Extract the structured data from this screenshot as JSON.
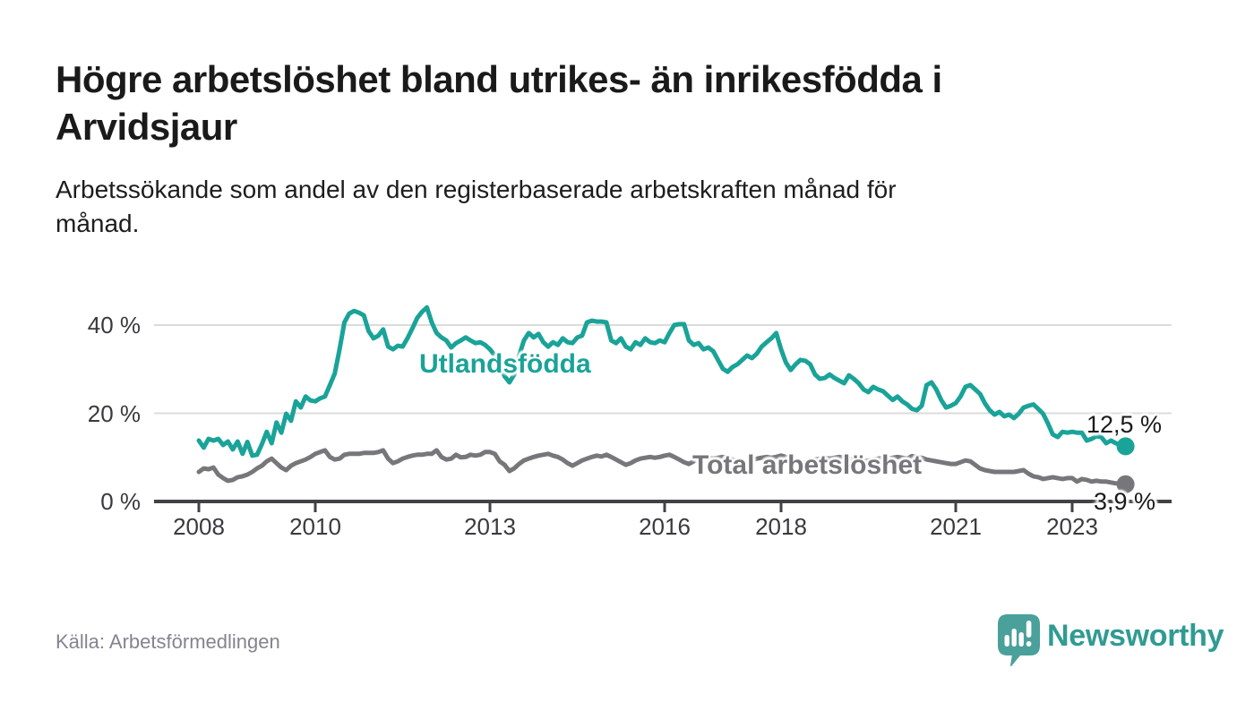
{
  "header": {
    "title_line1": "Högre arbetslöshet bland utrikes- än inrikesfödda i",
    "title_line2": "Arvidsjaur",
    "subtitle_line1": "Arbetssökande som andel av den registerbaserade arbetskraften månad för",
    "subtitle_line2": "månad."
  },
  "footer": {
    "source": "Källa: Arbetsförmedlingen",
    "brand": "Newsworthy"
  },
  "colors": {
    "foreign_born": "#1aa398",
    "total": "#77777b",
    "grid": "#dcdcdc",
    "axis": "#424246",
    "tick_text": "#3a3a3e",
    "title_text": "#1a1a1a",
    "source_text": "#84848e",
    "brand_teal": "#309b93",
    "logo_mark": "#4aa09a"
  },
  "chart_data": {
    "type": "line",
    "title": "Högre arbetslöshet bland utrikes- än inrikesfödda i Arvidsjaur",
    "subtitle": "Arbetssökande som andel av den registerbaserade arbetskraften månad för månad.",
    "unit": "%",
    "x_start_year": 2008,
    "x_step_months": 1,
    "x_end": "2023-12",
    "x_tick_years": [
      2008,
      2010,
      2013,
      2016,
      2018,
      2021,
      2023
    ],
    "x_tick_labels": [
      "2008",
      "2010",
      "2013",
      "2016",
      "2018",
      "2021",
      "2023"
    ],
    "y_tick_values": [
      0,
      20,
      40
    ],
    "y_tick_labels": [
      "0 %",
      "20 %",
      "40 %"
    ],
    "ylim": [
      0,
      46
    ],
    "grid": "horizontal",
    "legend_position": "inline-labels",
    "series": [
      {
        "name": "Utlandsfödda",
        "color": "#1aa398",
        "end_label": "12,5 %",
        "end_value": 12.5,
        "values": [
          13.8,
          12.2,
          14.2,
          13.8,
          14.2,
          12.8,
          13.6,
          11.8,
          13.6,
          10.8,
          13.5,
          10.4,
          10.6,
          13.0,
          15.8,
          13.2,
          17.9,
          15.6,
          19.9,
          18.3,
          22.7,
          21.3,
          23.8,
          22.9,
          22.7,
          23.4,
          23.8,
          26.4,
          29.0,
          34.5,
          40.6,
          42.6,
          43.2,
          42.8,
          42.2,
          38.6,
          37.0,
          37.6,
          39.0,
          35.1,
          34.5,
          35.3,
          35.1,
          37.0,
          39.2,
          41.6,
          43.0,
          44.0,
          40.6,
          38.2,
          37.2,
          36.5,
          34.9,
          35.9,
          36.5,
          37.2,
          36.5,
          35.9,
          36.1,
          35.5,
          34.5,
          33.1,
          30.9,
          28.4,
          27.0,
          28.8,
          33.0,
          36.5,
          38.2,
          37.2,
          38.0,
          36.1,
          35.1,
          36.1,
          35.5,
          37.0,
          36.1,
          35.9,
          37.2,
          37.6,
          40.6,
          41.0,
          40.8,
          40.8,
          40.6,
          36.5,
          35.9,
          37.0,
          35.1,
          34.5,
          36.1,
          35.5,
          37.0,
          36.1,
          35.9,
          36.5,
          36.1,
          38.2,
          40.0,
          40.2,
          40.2,
          36.5,
          35.5,
          35.9,
          34.5,
          34.9,
          34.1,
          32.1,
          30.1,
          29.4,
          30.5,
          31.1,
          32.1,
          33.1,
          32.5,
          33.5,
          35.1,
          36.1,
          37.0,
          38.2,
          34.5,
          31.5,
          29.8,
          31.1,
          32.1,
          31.9,
          31.1,
          28.8,
          27.8,
          28.0,
          28.8,
          28.0,
          27.4,
          26.8,
          28.6,
          27.8,
          26.8,
          25.4,
          24.8,
          26.0,
          25.4,
          25.0,
          24.0,
          23.0,
          23.8,
          22.7,
          22.0,
          21.0,
          20.7,
          21.7,
          26.4,
          27.0,
          25.4,
          23.0,
          21.3,
          21.7,
          22.3,
          23.8,
          26.0,
          26.4,
          25.4,
          24.4,
          22.3,
          20.7,
          19.7,
          20.3,
          19.3,
          19.7,
          18.9,
          19.9,
          21.3,
          21.7,
          22.0,
          21.0,
          19.9,
          17.7,
          15.2,
          14.6,
          15.8,
          15.6,
          15.8,
          15.6,
          15.6,
          13.8,
          14.2,
          14.8,
          14.6,
          13.2,
          13.8,
          13.2,
          12.8,
          12.5
        ]
      },
      {
        "name": "Total arbetslöshet",
        "color": "#77777b",
        "end_label": "3,9 %",
        "end_value": 3.9,
        "values": [
          6.7,
          7.5,
          7.3,
          7.7,
          6.1,
          5.3,
          4.7,
          4.9,
          5.5,
          5.7,
          6.1,
          6.7,
          7.5,
          8.1,
          9.1,
          9.7,
          8.7,
          7.7,
          7.1,
          8.1,
          8.7,
          9.1,
          9.5,
          10.1,
          10.8,
          11.2,
          11.6,
          10.1,
          9.5,
          9.7,
          10.6,
          10.8,
          10.8,
          10.8,
          11.0,
          11.0,
          11.0,
          11.2,
          11.6,
          9.7,
          8.7,
          9.1,
          9.7,
          10.1,
          10.4,
          10.6,
          10.6,
          10.8,
          10.8,
          11.6,
          10.1,
          9.5,
          9.7,
          10.6,
          10.0,
          10.1,
          10.6,
          10.4,
          10.6,
          11.2,
          11.2,
          10.8,
          9.1,
          8.3,
          6.9,
          7.5,
          8.5,
          9.3,
          9.7,
          10.1,
          10.4,
          10.6,
          10.8,
          10.4,
          10.1,
          9.5,
          8.7,
          8.1,
          8.7,
          9.3,
          9.7,
          10.1,
          10.4,
          10.2,
          10.6,
          10.1,
          9.5,
          8.9,
          8.3,
          8.7,
          9.3,
          9.7,
          9.9,
          10.1,
          9.9,
          10.1,
          10.4,
          10.6,
          10.1,
          9.5,
          8.9,
          8.5,
          9.1,
          9.5,
          9.7,
          9.9,
          9.7,
          9.9,
          10.1,
          9.9,
          9.5,
          8.9,
          8.5,
          8.9,
          9.3,
          9.7,
          9.9,
          10.1,
          9.9,
          10.1,
          10.4,
          10.1,
          9.7,
          9.1,
          8.7,
          8.9,
          9.3,
          9.5,
          9.7,
          9.9,
          9.7,
          9.9,
          10.1,
          9.9,
          9.7,
          9.5,
          9.3,
          9.1,
          9.3,
          9.5,
          9.7,
          9.9,
          9.7,
          9.9,
          10.1,
          9.9,
          9.7,
          10.3,
          10.1,
          9.9,
          9.5,
          9.3,
          9.1,
          8.9,
          8.7,
          8.5,
          8.5,
          8.9,
          9.3,
          9.1,
          8.3,
          7.5,
          7.1,
          6.9,
          6.7,
          6.7,
          6.7,
          6.7,
          6.7,
          6.9,
          7.1,
          6.3,
          5.7,
          5.5,
          5.1,
          5.3,
          5.5,
          5.3,
          5.1,
          5.3,
          5.3,
          4.5,
          5.1,
          4.9,
          4.5,
          4.7,
          4.5,
          4.5,
          4.3,
          4.1,
          4.0,
          3.9
        ]
      }
    ]
  }
}
